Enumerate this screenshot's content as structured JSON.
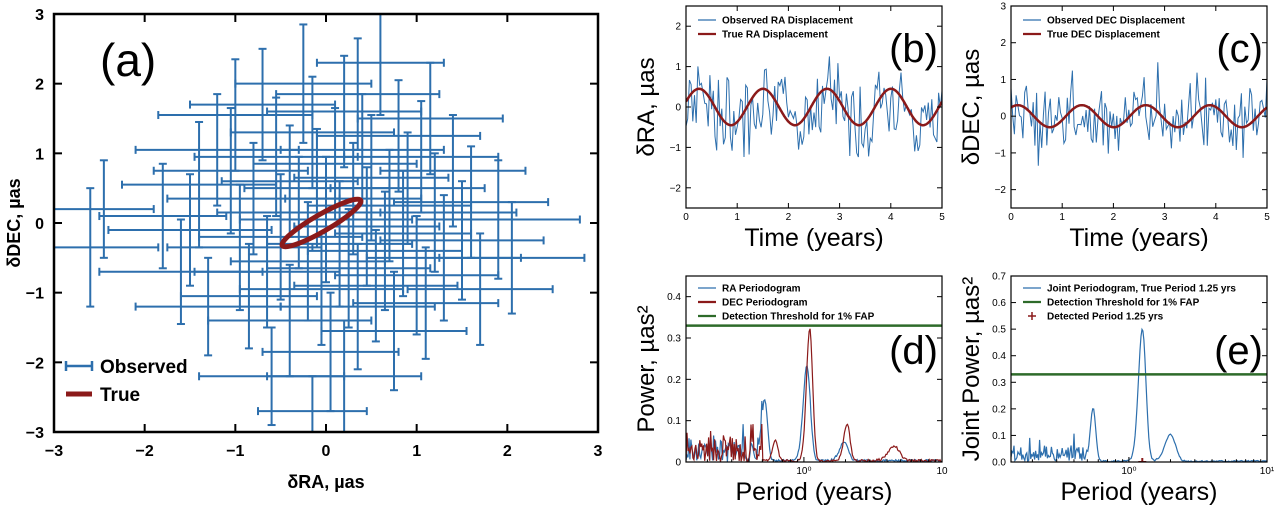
{
  "colors": {
    "observed": "#2d6fad",
    "true": "#8b1a1a",
    "threshold": "#2e6b2a",
    "frame": "#000000"
  },
  "chart_data": [
    {
      "id": "a",
      "type": "scatter",
      "panel_label": "(a)",
      "xlabel": "δRA, µas",
      "ylabel": "δDEC, µas",
      "xlim": [
        -3,
        3
      ],
      "ylim": [
        -3,
        3
      ],
      "xticks": [
        "−3",
        "−2",
        "−1",
        "0",
        "1",
        "2",
        "3"
      ],
      "yticks": [
        "−3",
        "−2",
        "−1",
        "0",
        "1",
        "2",
        "3"
      ],
      "legend": {
        "placement": "bottom-left",
        "entries": [
          "Observed",
          "True"
        ]
      },
      "series": [
        {
          "name": "Observed",
          "style": "errorbar",
          "points": [
            [
              -2.45,
              0.2,
              0.55,
              0.7
            ],
            [
              -2.6,
              -0.35,
              0.75,
              0.85
            ],
            [
              -1.5,
              -0.1,
              0.9,
              0.8
            ],
            [
              -1.6,
              -0.7,
              0.9,
              0.75
            ],
            [
              -1.4,
              0.55,
              0.85,
              0.9
            ],
            [
              -1.2,
              1.05,
              0.9,
              0.8
            ],
            [
              -1.3,
              -1.2,
              0.8,
              0.7
            ],
            [
              -1.05,
              0.75,
              0.85,
              0.9
            ],
            [
              -0.95,
              -0.35,
              0.8,
              0.9
            ],
            [
              -0.8,
              0.35,
              0.95,
              0.8
            ],
            [
              -0.85,
              -1.05,
              0.75,
              0.75
            ],
            [
              -0.7,
              1.7,
              0.8,
              0.8
            ],
            [
              -0.65,
              -0.7,
              0.8,
              0.8
            ],
            [
              -0.55,
              0.95,
              0.9,
              0.85
            ],
            [
              -0.5,
              -0.2,
              0.9,
              0.9
            ],
            [
              -0.4,
              0.6,
              0.75,
              0.8
            ],
            [
              -0.4,
              -1.4,
              0.9,
              0.8
            ],
            [
              -0.3,
              0.15,
              0.9,
              0.8
            ],
            [
              -0.25,
              2.0,
              0.75,
              0.85
            ],
            [
              -0.2,
              -0.55,
              0.85,
              0.85
            ],
            [
              -0.15,
              1.3,
              0.9,
              0.8
            ],
            [
              -0.1,
              0.5,
              0.8,
              0.85
            ],
            [
              -0.05,
              -0.95,
              0.9,
              0.8
            ],
            [
              0.0,
              0.05,
              0.95,
              0.9
            ],
            [
              0.05,
              -1.85,
              0.75,
              0.85
            ],
            [
              0.1,
              0.85,
              0.9,
              0.8
            ],
            [
              0.15,
              -0.3,
              0.8,
              0.9
            ],
            [
              0.2,
              1.6,
              0.85,
              0.8
            ],
            [
              0.25,
              -0.65,
              0.9,
              0.85
            ],
            [
              0.3,
              0.35,
              0.75,
              0.8
            ],
            [
              0.35,
              -1.2,
              0.85,
              0.9
            ],
            [
              0.4,
              1.05,
              0.9,
              0.8
            ],
            [
              0.45,
              -0.05,
              0.8,
              0.85
            ],
            [
              0.5,
              0.65,
              0.85,
              0.9
            ],
            [
              0.55,
              -0.9,
              0.9,
              0.8
            ],
            [
              0.6,
              2.3,
              0.7,
              0.75
            ],
            [
              0.65,
              -0.4,
              0.85,
              0.85
            ],
            [
              0.7,
              0.25,
              0.9,
              0.8
            ],
            [
              0.75,
              -1.55,
              0.8,
              0.85
            ],
            [
              0.8,
              1.25,
              0.9,
              0.8
            ],
            [
              0.85,
              -0.15,
              0.75,
              0.9
            ],
            [
              0.9,
              0.5,
              0.85,
              0.8
            ],
            [
              1.0,
              -0.75,
              0.9,
              0.85
            ],
            [
              1.05,
              0.95,
              0.85,
              0.8
            ],
            [
              1.1,
              -1.15,
              0.8,
              0.8
            ],
            [
              1.2,
              0.15,
              0.9,
              0.85
            ],
            [
              1.3,
              -0.5,
              0.85,
              0.9
            ],
            [
              1.4,
              0.75,
              0.8,
              0.8
            ],
            [
              1.5,
              -0.25,
              0.9,
              0.85
            ],
            [
              1.6,
              0.3,
              0.85,
              0.8
            ],
            [
              1.7,
              -0.95,
              0.8,
              0.8
            ],
            [
              1.9,
              0.05,
              0.9,
              0.85
            ],
            [
              2.05,
              -0.5,
              0.8,
              0.8
            ],
            [
              -0.6,
              -2.2,
              0.8,
              0.7
            ],
            [
              -0.15,
              -2.7,
              0.6,
              0.5
            ],
            [
              0.35,
              1.85,
              0.9,
              0.8
            ],
            [
              -1.0,
              1.55,
              0.85,
              0.8
            ],
            [
              1.15,
              1.5,
              0.8,
              0.8
            ],
            [
              0.2,
              -2.2,
              0.85,
              0.8
            ],
            [
              -1.8,
              0.1,
              0.7,
              0.75
            ]
          ]
        },
        {
          "name": "True",
          "style": "ellipse",
          "cx": -0.05,
          "cy": 0.0,
          "rx": 0.5,
          "ry": 0.12,
          "angle_deg": 30
        }
      ]
    },
    {
      "id": "b",
      "type": "line",
      "panel_label": "(b)",
      "xlabel": "Time (years)",
      "ylabel": "δRA, µas",
      "xlim": [
        0,
        5
      ],
      "ylim": [
        -2.5,
        2.5
      ],
      "xticks": [
        "0",
        "1",
        "2",
        "3",
        "4",
        "5"
      ],
      "yticks": [
        "−2",
        "−1",
        "0",
        "1",
        "2"
      ],
      "legend": {
        "placement": "top-left",
        "entries": [
          "Observed RA Displacement",
          "True RA Displacement"
        ]
      },
      "series": [
        {
          "name": "Observed RA Displacement",
          "kind": "noise",
          "amp": 0.45,
          "period": 1.25,
          "phase": 0.3,
          "noise": 0.75,
          "seed": 7
        },
        {
          "name": "True RA Displacement",
          "kind": "sine",
          "amp": 0.45,
          "period": 1.25,
          "phase": 0.3
        }
      ]
    },
    {
      "id": "c",
      "type": "line",
      "panel_label": "(c)",
      "xlabel": "Time (years)",
      "ylabel": "δDEC, µas",
      "xlim": [
        0,
        5
      ],
      "ylim": [
        -2.5,
        3.0
      ],
      "xticks": [
        "0",
        "1",
        "2",
        "3",
        "4",
        "5"
      ],
      "yticks": [
        "−2",
        "−1",
        "0",
        "1",
        "2",
        "3"
      ],
      "legend": {
        "placement": "top-left",
        "entries": [
          "Observed DEC Displacement",
          "True DEC Displacement"
        ]
      },
      "series": [
        {
          "name": "Observed DEC Displacement",
          "kind": "noise",
          "amp": 0.3,
          "period": 1.25,
          "phase": 0.9,
          "noise": 0.75,
          "seed": 13
        },
        {
          "name": "True DEC Displacement",
          "kind": "sine",
          "amp": 0.3,
          "period": 1.25,
          "phase": 0.9
        }
      ]
    },
    {
      "id": "d",
      "type": "line",
      "panel_label": "(d)",
      "xlabel": "Period (years)",
      "ylabel": "Power, µas²",
      "xscale": "log",
      "xlim": [
        0.14,
        10
      ],
      "ylim": [
        0,
        0.45
      ],
      "xticks": [
        "10⁰",
        "10"
      ],
      "yticks": [
        "0",
        "0.1",
        "0.2",
        "0.3",
        "0.4"
      ],
      "legend": {
        "placement": "top-left",
        "entries": [
          "RA Periodogram",
          "DEC Periodogram",
          "Detection Threshold for 1% FAP"
        ]
      },
      "threshold": 0.33,
      "series": [
        {
          "name": "RA Periodogram",
          "kind": "periodogram",
          "seed": 21,
          "base": 0.04,
          "peaks": [
            [
              0.52,
              0.15,
              0.035
            ],
            [
              1.05,
              0.23,
              0.09
            ],
            [
              1.95,
              0.045,
              0.2
            ]
          ]
        },
        {
          "name": "DEC Periodogram",
          "kind": "periodogram",
          "seed": 33,
          "base": 0.045,
          "peaks": [
            [
              0.62,
              0.05,
              0.04
            ],
            [
              1.1,
              0.32,
              0.08
            ],
            [
              2.05,
              0.09,
              0.15
            ],
            [
              4.5,
              0.035,
              0.6
            ]
          ]
        }
      ]
    },
    {
      "id": "e",
      "type": "line",
      "panel_label": "(e)",
      "xlabel": "Period (years)",
      "ylabel": "Joint Power, µas²",
      "xscale": "log",
      "xlim": [
        0.14,
        10
      ],
      "ylim": [
        0,
        0.7
      ],
      "xticks": [
        "10⁰",
        "10¹"
      ],
      "yticks": [
        "0.0",
        "0.1",
        "0.2",
        "0.3",
        "0.4",
        "0.5",
        "0.6",
        "0.7"
      ],
      "legend": {
        "placement": "top-left",
        "entries": [
          "Joint Periodogram, True Period 1.25 yrs",
          "Detection Threshold for 1% FAP",
          "Detected Period 1.25 yrs"
        ]
      },
      "threshold": 0.33,
      "detected_period": 1.25,
      "series": [
        {
          "name": "Joint Periodogram, True Period 1.25 yrs",
          "kind": "periodogram",
          "seed": 41,
          "base": 0.045,
          "peaks": [
            [
              0.55,
              0.2,
              0.035
            ],
            [
              1.25,
              0.5,
              0.11
            ],
            [
              2.0,
              0.1,
              0.25
            ]
          ]
        }
      ]
    }
  ]
}
